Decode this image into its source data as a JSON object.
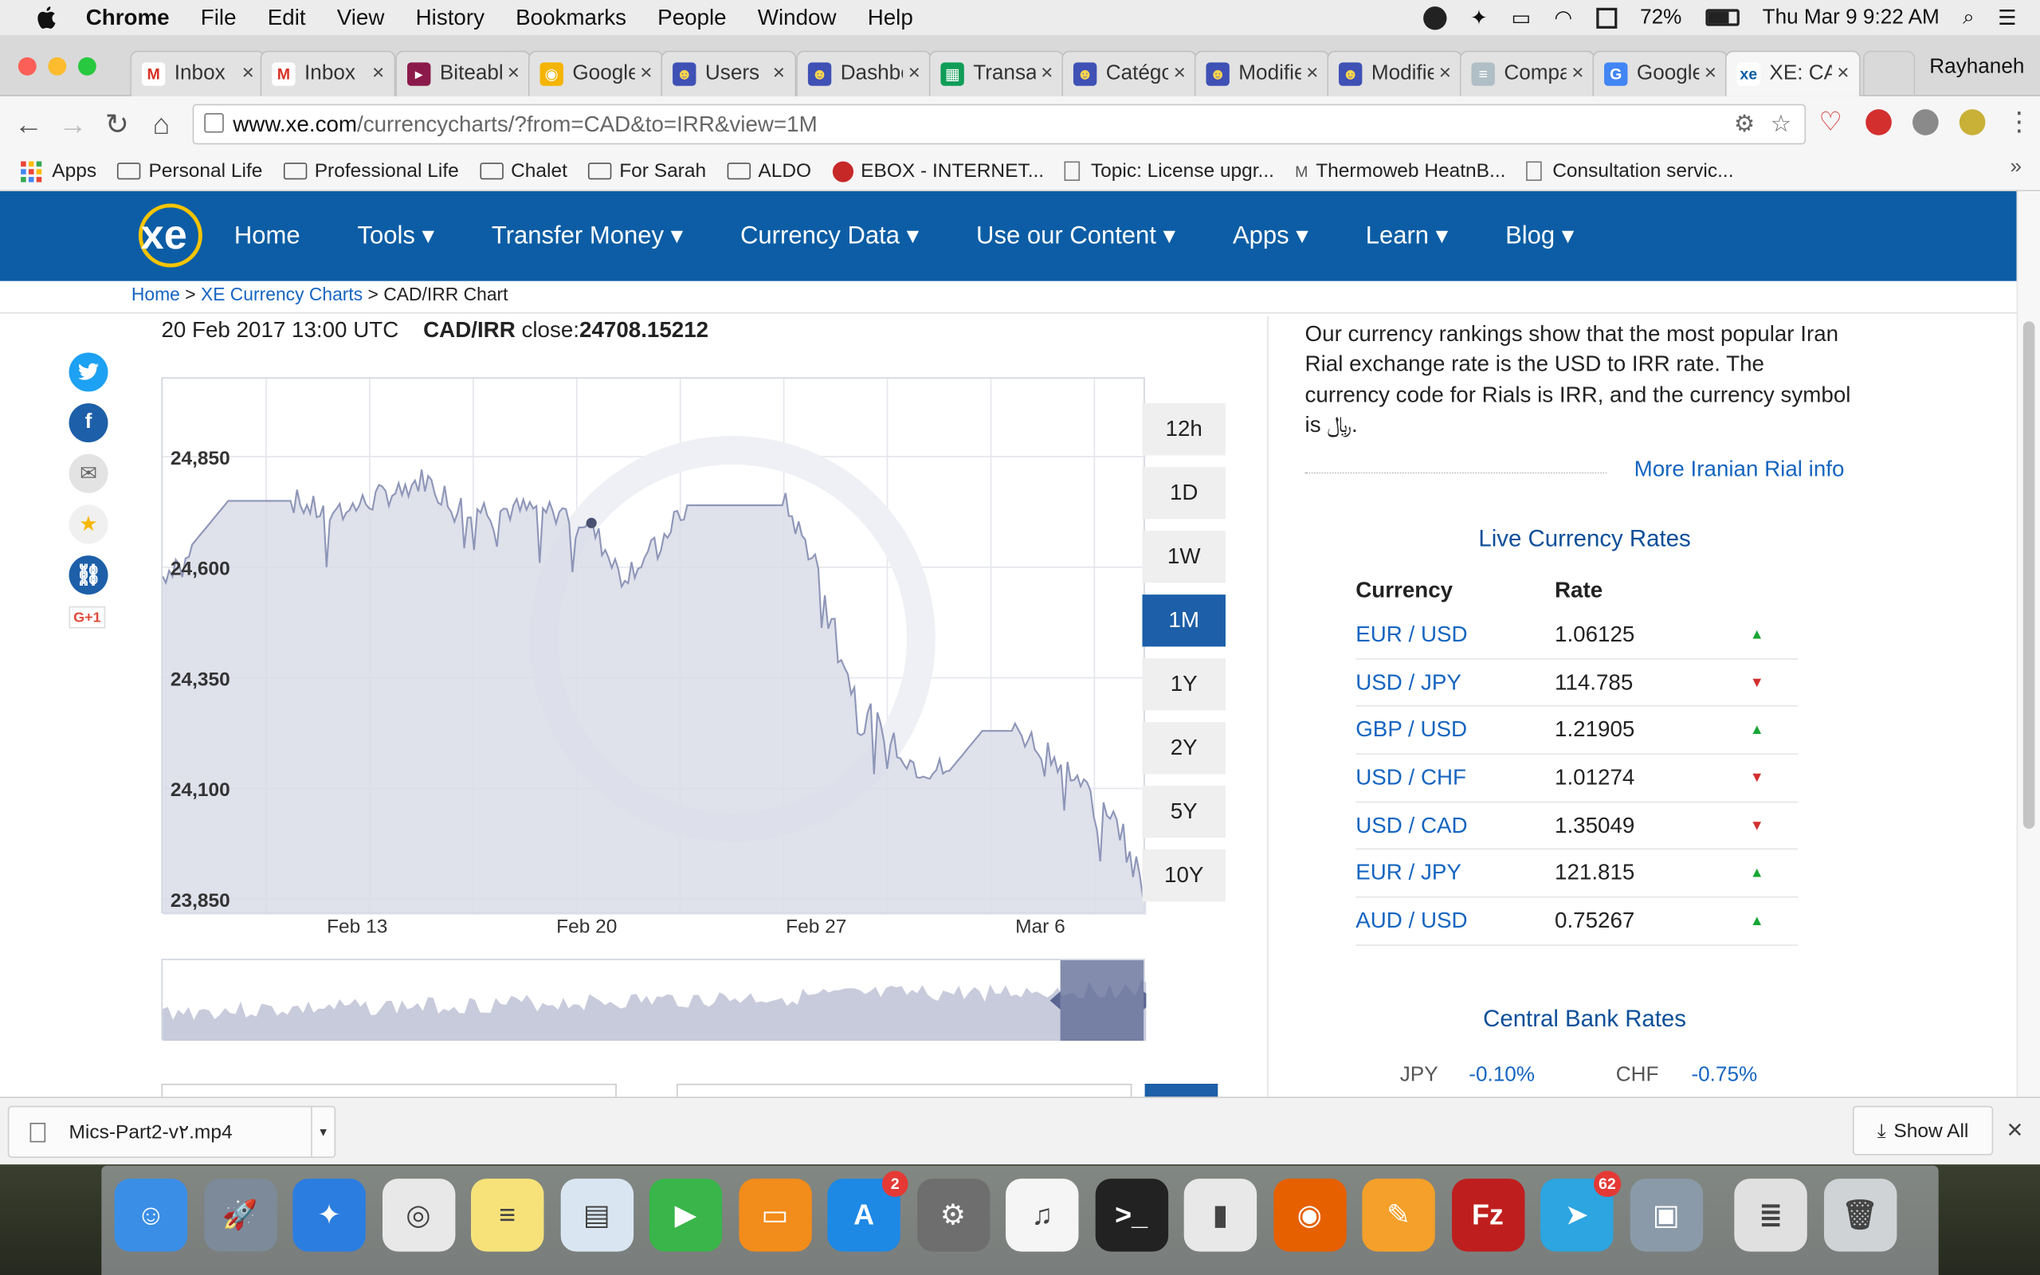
{
  "menubar": {
    "app": "Chrome",
    "items": [
      "File",
      "Edit",
      "View",
      "History",
      "Bookmarks",
      "People",
      "Window",
      "Help"
    ],
    "battery": "72%",
    "clock": "Thu Mar 9  9:22 AM"
  },
  "tabs": [
    {
      "title": "Inbox",
      "fav_color": "#ffffff",
      "fav_text": "M",
      "fav_fg": "#d93025"
    },
    {
      "title": "Inbox",
      "fav_color": "#ffffff",
      "fav_text": "M",
      "fav_fg": "#d93025"
    },
    {
      "title": "Biteable",
      "fav_color": "#8b1a4a",
      "fav_text": "▸",
      "fav_fg": "#ffffff"
    },
    {
      "title": "Google",
      "fav_color": "#f4b400",
      "fav_text": "◉",
      "fav_fg": "#ffffff"
    },
    {
      "title": "Users",
      "fav_color": "#3f51b5",
      "fav_text": "☻",
      "fav_fg": "#ffd54f"
    },
    {
      "title": "Dashboard",
      "fav_color": "#3f51b5",
      "fav_text": "☻",
      "fav_fg": "#ffd54f"
    },
    {
      "title": "Transactions",
      "fav_color": "#0f9d58",
      "fav_text": "▦",
      "fav_fg": "#ffffff"
    },
    {
      "title": "Catégories",
      "fav_color": "#3f51b5",
      "fav_text": "☻",
      "fav_fg": "#ffd54f"
    },
    {
      "title": "Modifier",
      "fav_color": "#3f51b5",
      "fav_text": "☻",
      "fav_fg": "#ffd54f"
    },
    {
      "title": "Modifier",
      "fav_color": "#3f51b5",
      "fav_text": "☻",
      "fav_fg": "#ffd54f"
    },
    {
      "title": "Compare",
      "fav_color": "#b0bec5",
      "fav_text": "≡",
      "fav_fg": "#ffffff"
    },
    {
      "title": "Google",
      "fav_color": "#4285f4",
      "fav_text": "G",
      "fav_fg": "#ffffff"
    },
    {
      "title": "XE: CAD",
      "fav_color": "#ffffff",
      "fav_text": "xe",
      "fav_fg": "#0c5da5"
    }
  ],
  "profile_name": "Rayhaneh",
  "url": {
    "host": "www.xe.com",
    "path": "/currencycharts/?from=CAD&to=IRR&view=1M"
  },
  "bookmarks": [
    {
      "label": "Apps",
      "kind": "apps"
    },
    {
      "label": "Personal Life",
      "kind": "folder"
    },
    {
      "label": "Professional Life",
      "kind": "folder"
    },
    {
      "label": "Chalet",
      "kind": "folder"
    },
    {
      "label": "For Sarah",
      "kind": "folder"
    },
    {
      "label": "ALDO",
      "kind": "folder"
    },
    {
      "label": "EBOX - INTERNET...",
      "kind": "ebox"
    },
    {
      "label": "Topic: License upgr...",
      "kind": "page"
    },
    {
      "label": "Thermoweb HeatnB...",
      "kind": "thermo"
    },
    {
      "label": "Consultation servic...",
      "kind": "page"
    }
  ],
  "xe": {
    "logo": "xe",
    "nav": [
      "Home",
      "Tools ▾",
      "Transfer Money ▾",
      "Currency Data ▾",
      "Use our Content ▾",
      "Apps ▾",
      "Learn ▾",
      "Blog ▾"
    ],
    "breadcrumb": {
      "home": "Home",
      "sep1": " > ",
      "charts": "XE Currency Charts",
      "sep2": " > ",
      "current": "CAD/IRR Chart"
    }
  },
  "chart_header": {
    "date": "20 Feb 2017 13:00 UTC",
    "pair": "CAD/IRR",
    "close_label": "close:",
    "close_value": "24708.15212"
  },
  "periods": [
    "12h",
    "1D",
    "1W",
    "1M",
    "1Y",
    "2Y",
    "5Y",
    "10Y"
  ],
  "active_period": "1M",
  "chart_data": {
    "type": "area",
    "y_tick_labels": [
      "24,850",
      "24,600",
      "24,350",
      "24,100",
      "23,850"
    ],
    "x_tick_labels": [
      "Feb 13",
      "Feb 20",
      "Feb 27",
      "Mar 6"
    ],
    "ylim": [
      23850,
      24850
    ],
    "xlim": [
      "2017-02-07",
      "2017-03-09"
    ],
    "line_color": "#8e96b8",
    "fill_color": "#d9dce8",
    "x": [
      "2017-02-07",
      "2017-02-08",
      "2017-02-09",
      "2017-02-10",
      "2017-02-11",
      "2017-02-12",
      "2017-02-13",
      "2017-02-14",
      "2017-02-15",
      "2017-02-16",
      "2017-02-17",
      "2017-02-18",
      "2017-02-19",
      "2017-02-20",
      "2017-02-21",
      "2017-02-22",
      "2017-02-23",
      "2017-02-24",
      "2017-02-25",
      "2017-02-26",
      "2017-02-27",
      "2017-02-28",
      "2017-03-01",
      "2017-03-02",
      "2017-03-03",
      "2017-03-04",
      "2017-03-05",
      "2017-03-06",
      "2017-03-07",
      "2017-03-08",
      "2017-03-09"
    ],
    "values": [
      24580,
      24660,
      24750,
      24750,
      24750,
      24720,
      24740,
      24770,
      24800,
      24740,
      24730,
      24730,
      24730,
      24700,
      24580,
      24640,
      24740,
      24740,
      24740,
      24740,
      24600,
      24330,
      24220,
      24150,
      24140,
      24230,
      24230,
      24190,
      24110,
      24040,
      23900
    ]
  },
  "right": {
    "intro": "Our currency rankings show that the most popular Iran Rial exchange rate is the USD to IRR rate. The currency code for Rials is IRR, and the currency symbol is ﷼.",
    "more_link": "More Iranian Rial info",
    "live_title": "Live Currency Rates",
    "col_currency": "Currency",
    "col_rate": "Rate",
    "rates": [
      {
        "pair": "EUR / USD",
        "rate": "1.06125",
        "dir": "up"
      },
      {
        "pair": "USD / JPY",
        "rate": "114.785",
        "dir": "down"
      },
      {
        "pair": "GBP / USD",
        "rate": "1.21905",
        "dir": "up"
      },
      {
        "pair": "USD / CHF",
        "rate": "1.01274",
        "dir": "down"
      },
      {
        "pair": "USD / CAD",
        "rate": "1.35049",
        "dir": "down"
      },
      {
        "pair": "EUR / JPY",
        "rate": "121.815",
        "dir": "up"
      },
      {
        "pair": "AUD / USD",
        "rate": "0.75267",
        "dir": "up"
      }
    ],
    "central_title": "Central Bank Rates",
    "central": [
      {
        "code": "JPY",
        "rate": "-0.10%"
      },
      {
        "code": "CHF",
        "rate": "-0.75%"
      }
    ]
  },
  "download": {
    "file": "Mics-Part2-v٢.mp4",
    "show_all": "Show All"
  },
  "dock": [
    {
      "name": "finder",
      "color": "#3a8ee6",
      "glyph": "☺"
    },
    {
      "name": "launchpad",
      "color": "#7d8a99",
      "glyph": "🚀"
    },
    {
      "name": "safari",
      "color": "#2b7de0",
      "glyph": "✦"
    },
    {
      "name": "chrome",
      "color": "#e8e8e8",
      "glyph": "◎"
    },
    {
      "name": "notes",
      "color": "#f7e27a",
      "glyph": "≡"
    },
    {
      "name": "preview",
      "color": "#d9e6f2",
      "glyph": "▤"
    },
    {
      "name": "facetime",
      "color": "#39b54a",
      "glyph": "▶"
    },
    {
      "name": "ibooks",
      "color": "#f28c1b",
      "glyph": "▭"
    },
    {
      "name": "app-store",
      "color": "#1e88e5",
      "glyph": "A",
      "badge": "2"
    },
    {
      "name": "system-preferences",
      "color": "#6e6e6e",
      "glyph": "⚙"
    },
    {
      "name": "itunes",
      "color": "#f5f5f5",
      "glyph": "♫"
    },
    {
      "name": "terminal",
      "color": "#222222",
      "glyph": ">_"
    },
    {
      "name": "numbers",
      "color": "#e8e8e8",
      "glyph": "▮"
    },
    {
      "name": "firefox",
      "color": "#e66000",
      "glyph": "◉"
    },
    {
      "name": "pages",
      "color": "#f4a02a",
      "glyph": "✎"
    },
    {
      "name": "filezilla",
      "color": "#bf1e1e",
      "glyph": "Fz"
    },
    {
      "name": "telegram",
      "color": "#2ca5e0",
      "glyph": "➤",
      "badge": "62"
    },
    {
      "name": "image-capture",
      "color": "#8a9aa8",
      "glyph": "▣"
    },
    {
      "name": "document",
      "color": "#e0e0e0",
      "glyph": "≣"
    },
    {
      "name": "trash",
      "color": "#cfd3d6",
      "glyph": "🗑"
    }
  ]
}
